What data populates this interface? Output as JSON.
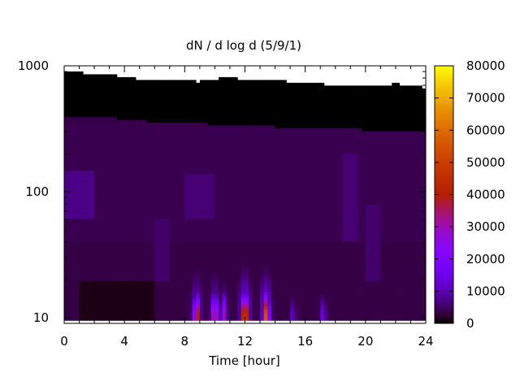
{
  "chart_data": {
    "type": "heatmap",
    "title": "dN / d log d (5/9/1)",
    "xlabel": "Time [hour]",
    "ylabel": "",
    "x_range": [
      0,
      24
    ],
    "x_ticks": [
      0,
      4,
      8,
      12,
      16,
      20,
      24
    ],
    "y_scale": "log",
    "y_range": [
      9,
      1000
    ],
    "y_ticks": [
      10,
      100,
      1000
    ],
    "colorbar": {
      "palette": "gnuplot",
      "range": [
        0,
        80000
      ],
      "ticks": [
        0,
        10000,
        20000,
        30000,
        40000,
        50000,
        60000,
        70000,
        80000
      ]
    },
    "background_level": 3500,
    "bands": [
      {
        "d_range": [
          40,
          350
        ],
        "time_range": [
          0,
          24
        ],
        "value": 4000
      },
      {
        "d_range": [
          60,
          150
        ],
        "time_range": [
          0,
          2
        ],
        "value": 7000
      },
      {
        "d_range": [
          60,
          140
        ],
        "time_range": [
          8,
          10
        ],
        "value": 6000
      },
      {
        "d_range": [
          20,
          60
        ],
        "time_range": [
          6,
          7
        ],
        "value": 5500
      },
      {
        "d_range": [
          40,
          200
        ],
        "time_range": [
          18.5,
          19.5
        ],
        "value": 6000
      },
      {
        "d_range": [
          20,
          80
        ],
        "time_range": [
          20,
          21
        ],
        "value": 5500
      }
    ],
    "quiet_region": {
      "d_range": [
        9.5,
        20
      ],
      "time_range": [
        1,
        6
      ],
      "value": 1000
    },
    "events": [
      {
        "time": 8.8,
        "peak": 44000
      },
      {
        "time": 10.0,
        "peak": 40000
      },
      {
        "time": 10.6,
        "peak": 30000
      },
      {
        "time": 12.0,
        "peak": 60000
      },
      {
        "time": 13.4,
        "peak": 56000
      },
      {
        "time": 15.2,
        "peak": 12000
      },
      {
        "time": 17.2,
        "peak": 15000
      }
    ],
    "upper_cutoff_d": [
      880,
      880,
      870,
      860,
      800,
      790,
      790,
      760,
      760,
      750,
      780,
      820,
      760,
      760,
      780,
      740,
      720,
      720,
      700,
      700,
      690,
      700,
      720,
      700,
      670
    ],
    "dark_layer_d": [
      400,
      400,
      390,
      390,
      380,
      370,
      360,
      360,
      350,
      350,
      340,
      340,
      330,
      330,
      330,
      320,
      320,
      320,
      320,
      320,
      310,
      310,
      310,
      310,
      310
    ]
  }
}
